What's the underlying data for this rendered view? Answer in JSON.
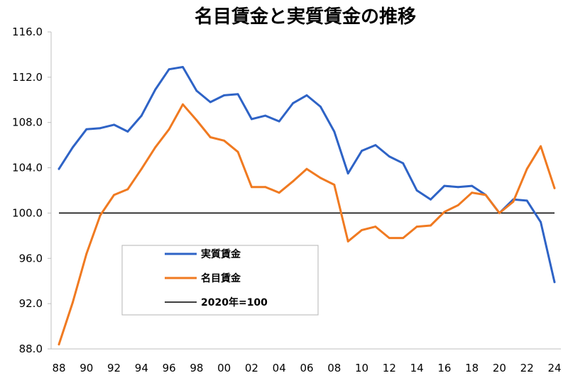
{
  "chart_data": {
    "type": "line",
    "title": "名目賃金と実質賃金の推移",
    "xlabel": "",
    "ylabel": "",
    "ylim": [
      88,
      116
    ],
    "y_ticks": [
      "88.0",
      "92.0",
      "96.0",
      "100.0",
      "104.0",
      "108.0",
      "112.0",
      "116.0"
    ],
    "x_tick_labels": [
      "88",
      "90",
      "92",
      "94",
      "96",
      "98",
      "00",
      "02",
      "04",
      "06",
      "08",
      "10",
      "12",
      "14",
      "16",
      "18",
      "20",
      "22",
      "24"
    ],
    "x": [
      1988,
      1989,
      1990,
      1991,
      1992,
      1993,
      1994,
      1995,
      1996,
      1997,
      1998,
      1999,
      2000,
      2001,
      2002,
      2003,
      2004,
      2005,
      2006,
      2007,
      2008,
      2009,
      2010,
      2011,
      2012,
      2013,
      2014,
      2015,
      2016,
      2017,
      2018,
      2019,
      2020,
      2021,
      2022,
      2023,
      2024
    ],
    "series": [
      {
        "name": "実質賃金",
        "color": "#2E63C6",
        "values": [
          103.9,
          105.8,
          107.4,
          107.5,
          107.8,
          107.2,
          108.6,
          110.9,
          112.7,
          112.9,
          110.8,
          109.8,
          110.4,
          110.5,
          108.3,
          108.6,
          108.1,
          109.7,
          110.4,
          109.4,
          107.2,
          103.5,
          105.5,
          106.0,
          105.0,
          104.4,
          102.0,
          101.2,
          102.4,
          102.3,
          102.4,
          101.6,
          100.0,
          101.2,
          101.1,
          99.2,
          93.9
        ]
      },
      {
        "name": "名目賃金",
        "color": "#F07A21",
        "values": [
          88.4,
          92.1,
          96.4,
          99.8,
          101.6,
          102.1,
          103.9,
          105.8,
          107.4,
          109.6,
          108.2,
          106.7,
          106.4,
          105.4,
          102.3,
          102.3,
          101.8,
          102.8,
          103.9,
          103.1,
          102.5,
          97.5,
          98.5,
          98.8,
          97.8,
          97.8,
          98.8,
          98.9,
          100.1,
          100.7,
          101.8,
          101.6,
          100.0,
          101.0,
          103.9,
          105.9,
          102.2
        ]
      }
    ],
    "reference_line": {
      "name": "2020年=100",
      "value": 100,
      "color": "#000000"
    },
    "grid": false,
    "legend_position": "lower-left"
  }
}
